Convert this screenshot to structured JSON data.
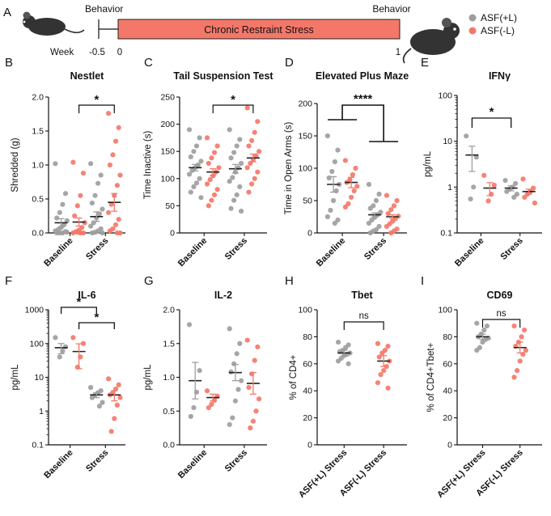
{
  "colors": {
    "plus": "#9e9e9e",
    "minus": "#f4786a",
    "stress_bar": "#f4786a"
  },
  "timeline": {
    "panel": "A",
    "behavior_left": "Behavior",
    "behavior_right": "Behavior",
    "bar_label": "Chronic Restraint Stress",
    "week_label": "Week",
    "ticks": [
      "-0.5",
      "0",
      "1"
    ]
  },
  "legend": {
    "plus_label": "ASF(+L)",
    "minus_label": "ASF(-L)"
  },
  "chart_data": [
    {
      "id": "B",
      "type": "scatter",
      "title": "Nestlet",
      "ylabel": "Shredded (g)",
      "ylim": [
        0,
        2.0
      ],
      "yscale": "linear",
      "yticks": [
        "0.0",
        "0.5",
        "1.0",
        "1.5",
        "2.0"
      ],
      "categories": [
        "Baseline",
        "Stress"
      ],
      "significance": [
        {
          "label": "*",
          "pair": "Baseline ASF(-L) vs Stress ASF(-L)"
        }
      ],
      "series": [
        {
          "name": "ASF(+L)",
          "groups": [
            {
              "mean": 0.15,
              "sem": 0.06,
              "values": [
                1.02,
                0.58,
                0.42,
                0.3,
                0.22,
                0.18,
                0.12,
                0.08,
                0.05,
                0.03,
                0.02,
                0.0,
                0.0,
                0.0,
                0.01
              ]
            },
            {
              "mean": 0.24,
              "sem": 0.07,
              "values": [
                1.02,
                0.85,
                0.73,
                0.55,
                0.44,
                0.35,
                0.28,
                0.22,
                0.15,
                0.1,
                0.06,
                0.03,
                0.01,
                0.0,
                0.0
              ]
            }
          ]
        },
        {
          "name": "ASF(-L)",
          "groups": [
            {
              "mean": 0.16,
              "sem": 0.06,
              "values": [
                1.04,
                0.88,
                0.55,
                0.4,
                0.25,
                0.15,
                0.08,
                0.04,
                0.02,
                0.0,
                0.0,
                0.0,
                0.01
              ]
            },
            {
              "mean": 0.45,
              "sem": 0.13,
              "values": [
                1.76,
                1.55,
                1.35,
                1.15,
                1.0,
                0.85,
                0.7,
                0.55,
                0.42,
                0.3,
                0.2,
                0.12,
                0.06,
                0.03,
                0.0,
                0.0
              ]
            }
          ]
        }
      ]
    },
    {
      "id": "C",
      "type": "scatter",
      "title": "Tail Suspension Test",
      "ylabel": "Time Inactive (s)",
      "ylim": [
        0,
        250
      ],
      "yscale": "linear",
      "yticks": [
        "0",
        "50",
        "100",
        "150",
        "200",
        "250"
      ],
      "categories": [
        "Baseline",
        "Stress"
      ],
      "significance": [
        {
          "label": "*",
          "pair": "Baseline ASF(-L) vs Stress ASF(-L)"
        }
      ],
      "series": [
        {
          "name": "ASF(+L)",
          "groups": [
            {
              "mean": 120,
              "sem": 6,
              "values": [
                190,
                175,
                160,
                150,
                140,
                132,
                125,
                120,
                115,
                108,
                100,
                92,
                85,
                75,
                65
              ]
            },
            {
              "mean": 118,
              "sem": 8,
              "values": [
                190,
                172,
                160,
                148,
                138,
                128,
                120,
                112,
                102,
                95,
                85,
                70,
                60,
                45,
                40
              ]
            }
          ]
        },
        {
          "name": "ASF(-L)",
          "groups": [
            {
              "mean": 112,
              "sem": 6,
              "values": [
                175,
                160,
                148,
                138,
                128,
                120,
                112,
                105,
                98,
                90,
                80,
                70,
                60,
                50
              ]
            },
            {
              "mean": 138,
              "sem": 7,
              "values": [
                230,
                205,
                185,
                170,
                160,
                150,
                142,
                135,
                128,
                120,
                112,
                100,
                90,
                75
              ]
            }
          ]
        }
      ]
    },
    {
      "id": "D",
      "type": "scatter",
      "title": "Elevated Plus Maze",
      "ylabel": "Time in Open Arms (s)",
      "ylim": [
        0,
        200
      ],
      "yscale": "linear",
      "yticks": [
        "0",
        "50",
        "100",
        "150",
        "200"
      ],
      "categories": [
        "Baseline",
        "Stress"
      ],
      "significance": [
        {
          "label": "****",
          "pair": "Baseline vs Stress"
        }
      ],
      "series": [
        {
          "name": "ASF(+L)",
          "groups": [
            {
              "mean": 75,
              "sem": 12,
              "values": [
                150,
                128,
                110,
                95,
                85,
                75,
                65,
                50,
                35,
                25,
                20,
                15
              ]
            },
            {
              "mean": 28,
              "sem": 3,
              "values": [
                75,
                60,
                50,
                42,
                38,
                32,
                28,
                24,
                20,
                15,
                10,
                5,
                3,
                0
              ]
            }
          ]
        },
        {
          "name": "ASF(-L)",
          "groups": [
            {
              "mean": 78,
              "sem": 8,
              "values": [
                112,
                100,
                90,
                82,
                78,
                72,
                65,
                55,
                45,
                40
              ]
            },
            {
              "mean": 25,
              "sem": 3,
              "values": [
                58,
                50,
                42,
                36,
                30,
                26,
                22,
                18,
                14,
                10,
                6,
                3,
                0
              ]
            }
          ]
        }
      ]
    },
    {
      "id": "E",
      "type": "scatter",
      "title": "IFNγ",
      "ylabel": "pg/mL",
      "ylim": [
        0.1,
        100
      ],
      "yscale": "log",
      "yticks": [
        "0.1",
        "1",
        "10",
        "100"
      ],
      "categories": [
        "Baseline",
        "Stress"
      ],
      "significance": [
        {
          "label": "*",
          "pair": "Baseline ASF(+L) vs Stress ASF(+L)"
        }
      ],
      "series": [
        {
          "name": "ASF(+L)",
          "groups": [
            {
              "mean": 5.0,
              "sem": 2.8,
              "values": [
                13,
                4.5,
                1.0,
                0.55
              ]
            },
            {
              "mean": 0.95,
              "sem": 0.12,
              "values": [
                1.4,
                1.2,
                1.0,
                0.9,
                0.8,
                0.7,
                0.6
              ]
            }
          ]
        },
        {
          "name": "ASF(-L)",
          "groups": [
            {
              "mean": 0.95,
              "sem": 0.3,
              "values": [
                1.8,
                1.1,
                0.7,
                0.5
              ]
            },
            {
              "mean": 0.8,
              "sem": 0.1,
              "values": [
                1.5,
                0.95,
                0.8,
                0.7,
                0.6,
                0.45
              ]
            }
          ]
        }
      ]
    },
    {
      "id": "F",
      "type": "scatter",
      "title": "IL-6",
      "ylabel": "pg/mL",
      "ylim": [
        0.1,
        1000
      ],
      "yscale": "log",
      "yticks": [
        "0.1",
        "1",
        "10",
        "100",
        "1000"
      ],
      "categories": [
        "Baseline",
        "Stress"
      ],
      "significance": [
        {
          "label": "*",
          "pair": "Baseline ASF(+L) vs Stress ASF(+L)"
        },
        {
          "label": "*",
          "pair": "Baseline ASF(-L) vs Stress ASF(-L)"
        }
      ],
      "series": [
        {
          "name": "ASF(+L)",
          "groups": [
            {
              "mean": 75,
              "sem": 25,
              "values": [
                150,
                80,
                60,
                40
              ]
            },
            {
              "mean": 3.0,
              "sem": 0.5,
              "values": [
                5,
                4,
                3.5,
                3,
                2.5,
                1.8,
                1.4
              ]
            }
          ]
        },
        {
          "name": "ASF(-L)",
          "groups": [
            {
              "mean": 58,
              "sem": 40,
              "values": [
                150,
                100,
                40,
                20
              ]
            },
            {
              "mean": 3.0,
              "sem": 1.0,
              "values": [
                9,
                6,
                4.5,
                3.5,
                3,
                2.5,
                1.5,
                0.6,
                0.25
              ]
            }
          ]
        }
      ]
    },
    {
      "id": "G",
      "type": "scatter",
      "title": "IL-2",
      "ylabel": "pg/mL",
      "ylim": [
        0,
        2.0
      ],
      "yscale": "linear",
      "yticks": [
        "0.0",
        "0.5",
        "1.0",
        "1.5",
        "2.0"
      ],
      "categories": [
        "Baseline",
        "Stress"
      ],
      "significance": [],
      "series": [
        {
          "name": "ASF(+L)",
          "groups": [
            {
              "mean": 0.95,
              "sem": 0.27,
              "values": [
                1.78,
                1.1,
                0.78,
                0.55,
                0.42
              ]
            },
            {
              "mean": 1.07,
              "sem": 0.12,
              "values": [
                1.72,
                1.5,
                1.35,
                1.2,
                1.08,
                0.95,
                0.82,
                0.65,
                0.4,
                0.3
              ]
            }
          ]
        },
        {
          "name": "ASF(-L)",
          "groups": [
            {
              "mean": 0.7,
              "sem": 0.05,
              "values": [
                0.8,
                0.72,
                0.66,
                0.6,
                0.55
              ]
            },
            {
              "mean": 0.91,
              "sem": 0.16,
              "values": [
                1.55,
                1.45,
                1.25,
                1.05,
                0.85,
                0.68,
                0.5,
                0.35,
                0.25
              ]
            }
          ]
        }
      ]
    },
    {
      "id": "H",
      "type": "scatter",
      "title": "Tbet",
      "ylabel": "% of CD4+",
      "ylim": [
        0,
        100
      ],
      "yscale": "linear",
      "yticks": [
        "0",
        "20",
        "40",
        "60",
        "80",
        "100"
      ],
      "categories": [
        "ASF(+L) Stress",
        "ASF(-L) Stress"
      ],
      "significance": [
        {
          "label": "ns",
          "pair": "ASF(+L) Stress vs ASF(-L) Stress"
        }
      ],
      "series": [
        {
          "name": "ASF(+L)",
          "groups": [
            {
              "mean": 68,
              "sem": 2,
              "values": [
                76,
                74,
                72,
                70,
                69,
                68,
                67,
                66,
                64,
                62,
                60
              ]
            }
          ]
        },
        {
          "name": "ASF(-L)",
          "groups": [
            {
              "mean": 62,
              "sem": 4,
              "values": [
                75,
                73,
                70,
                68,
                65,
                62,
                58,
                55,
                52,
                46,
                42
              ]
            }
          ]
        }
      ]
    },
    {
      "id": "I",
      "type": "scatter",
      "title": "CD69",
      "ylabel": "% of CD4+Tbet+",
      "ylim": [
        0,
        100
      ],
      "yscale": "linear",
      "yticks": [
        "0",
        "20",
        "40",
        "60",
        "80",
        "100"
      ],
      "categories": [
        "ASF(+L) Stress",
        "ASF(-L) Stress"
      ],
      "significance": [
        {
          "label": "ns",
          "pair": "ASF(+L) Stress vs ASF(-L) Stress"
        }
      ],
      "series": [
        {
          "name": "ASF(+L)",
          "groups": [
            {
              "mean": 80,
              "sem": 2,
              "values": [
                90,
                88,
                85,
                82,
                80,
                79,
                78,
                76,
                72,
                70
              ]
            }
          ]
        },
        {
          "name": "ASF(-L)",
          "groups": [
            {
              "mean": 72,
              "sem": 4,
              "values": [
                88,
                85,
                80,
                76,
                73,
                70,
                67,
                62,
                55,
                50
              ]
            }
          ]
        }
      ]
    }
  ]
}
